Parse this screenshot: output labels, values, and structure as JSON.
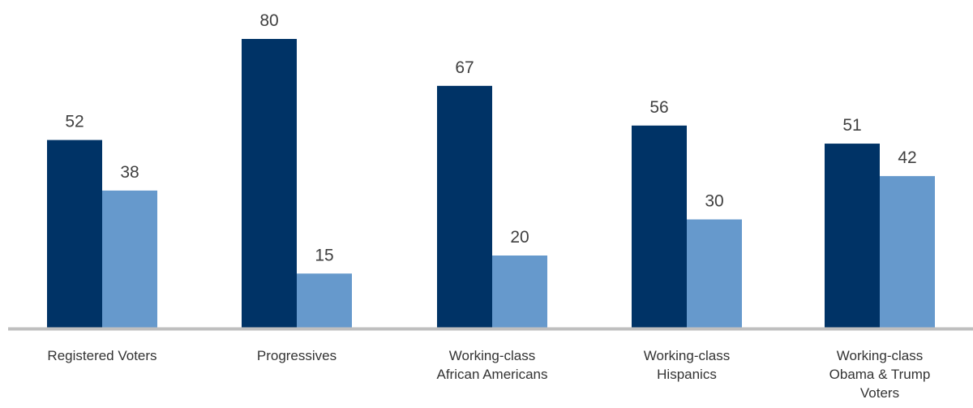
{
  "chart_data": {
    "type": "bar",
    "categories": [
      [
        "Registered Voters"
      ],
      [
        "Progressives"
      ],
      [
        "Working-class",
        "African Americans"
      ],
      [
        "Working-class",
        "Hispanics"
      ],
      [
        "Working-class",
        "Obama & Trump",
        "Voters"
      ]
    ],
    "series": [
      {
        "values": [
          52,
          80,
          67,
          56,
          51
        ],
        "color": "#003366"
      },
      {
        "values": [
          38,
          15,
          20,
          30,
          42
        ],
        "color": "#6699CC"
      }
    ],
    "ylim": [
      0,
      80
    ],
    "grid": false,
    "axis_color": "#BFBFBF"
  }
}
